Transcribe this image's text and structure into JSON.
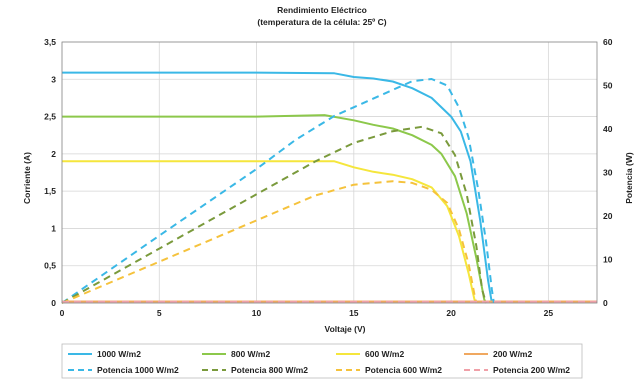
{
  "chart_data": {
    "type": "line",
    "title": "Rendimiento Eléctrico",
    "subtitle": "(temperatura de la célula: 25º C)",
    "xlabel": "Voltaje (V)",
    "ylabel": "Corriente (A)",
    "y2label": "Potencia (W)",
    "xlim": [
      0,
      27.5
    ],
    "ylim": [
      0,
      3.5
    ],
    "y2lim": [
      0,
      60
    ],
    "xticks": [
      0,
      5,
      10,
      15,
      20,
      25
    ],
    "xtick_labels": [
      "0",
      "5",
      "10",
      "15",
      "20",
      "25"
    ],
    "yticks": [
      0,
      0.5,
      1,
      1.5,
      2,
      2.5,
      3,
      3.5
    ],
    "ytick_labels": [
      "0",
      "0,5",
      "1",
      "1,5",
      "2",
      "2,5",
      "3",
      "3,5"
    ],
    "y2ticks": [
      0,
      10,
      20,
      30,
      40,
      50,
      60
    ],
    "y2tick_labels": [
      "0",
      "10",
      "20",
      "30",
      "40",
      "50",
      "60"
    ],
    "grid": true,
    "legend_position": "bottom",
    "series": [
      {
        "name": "1000 W/m2",
        "axis": "left",
        "style": "solid",
        "color": "#3ab8e6",
        "points": [
          [
            0,
            3.09
          ],
          [
            5,
            3.09
          ],
          [
            10,
            3.09
          ],
          [
            14,
            3.08
          ],
          [
            15,
            3.03
          ],
          [
            16,
            3.01
          ],
          [
            17,
            2.97
          ],
          [
            18,
            2.88
          ],
          [
            19,
            2.75
          ],
          [
            20,
            2.5
          ],
          [
            20.5,
            2.3
          ],
          [
            21,
            1.9
          ],
          [
            21.5,
            1.1
          ],
          [
            21.9,
            0.3
          ],
          [
            22.1,
            0
          ]
        ]
      },
      {
        "name": "800 W/m2",
        "axis": "left",
        "style": "solid",
        "color": "#8cc84b",
        "points": [
          [
            0,
            2.5
          ],
          [
            5,
            2.5
          ],
          [
            10,
            2.5
          ],
          [
            13.5,
            2.52
          ],
          [
            15,
            2.45
          ],
          [
            16,
            2.39
          ],
          [
            17,
            2.34
          ],
          [
            18,
            2.25
          ],
          [
            19,
            2.12
          ],
          [
            19.5,
            2.0
          ],
          [
            20.2,
            1.7
          ],
          [
            20.8,
            1.2
          ],
          [
            21.3,
            0.6
          ],
          [
            21.7,
            0.05
          ],
          [
            21.8,
            0
          ]
        ]
      },
      {
        "name": "600 W/m2",
        "axis": "left",
        "style": "solid",
        "color": "#f5e63c",
        "points": [
          [
            0,
            1.9
          ],
          [
            5,
            1.9
          ],
          [
            10,
            1.9
          ],
          [
            14,
            1.9
          ],
          [
            15,
            1.82
          ],
          [
            16,
            1.76
          ],
          [
            17,
            1.72
          ],
          [
            18,
            1.66
          ],
          [
            19,
            1.55
          ],
          [
            19.8,
            1.3
          ],
          [
            20.4,
            0.9
          ],
          [
            20.9,
            0.4
          ],
          [
            21.2,
            0.05
          ],
          [
            21.3,
            0
          ]
        ]
      },
      {
        "name": "200 W/m2",
        "axis": "left",
        "style": "solid",
        "color": "#f0a860",
        "points": [
          [
            0,
            0.02
          ],
          [
            27.5,
            0.02
          ]
        ]
      },
      {
        "name": "Potencia 1000 W/m2",
        "axis": "right",
        "style": "dashed",
        "color": "#3ab8e6",
        "points": [
          [
            0,
            0
          ],
          [
            5,
            15.5
          ],
          [
            10,
            30.8
          ],
          [
            12,
            37.5
          ],
          [
            14,
            43
          ],
          [
            16,
            47
          ],
          [
            18,
            51
          ],
          [
            19,
            51.5
          ],
          [
            19.8,
            50
          ],
          [
            20.4,
            45
          ],
          [
            20.9,
            38
          ],
          [
            21.4,
            26
          ],
          [
            21.8,
            14
          ],
          [
            22.1,
            3
          ],
          [
            22.2,
            0
          ]
        ]
      },
      {
        "name": "Potencia 800 W/m2",
        "axis": "right",
        "style": "dashed",
        "color": "#7a9a3c",
        "points": [
          [
            0,
            0
          ],
          [
            5,
            12.5
          ],
          [
            10,
            25
          ],
          [
            13,
            32.5
          ],
          [
            15,
            36.8
          ],
          [
            17,
            39.5
          ],
          [
            18.5,
            40.5
          ],
          [
            19.5,
            39
          ],
          [
            20.2,
            34
          ],
          [
            20.8,
            25
          ],
          [
            21.3,
            13
          ],
          [
            21.6,
            3
          ],
          [
            21.8,
            0
          ]
        ]
      },
      {
        "name": "Potencia 600 W/m2",
        "axis": "right",
        "style": "dashed",
        "color": "#f5c23c",
        "points": [
          [
            0,
            0
          ],
          [
            5,
            9.5
          ],
          [
            10,
            19
          ],
          [
            13,
            24.7
          ],
          [
            15,
            27.2
          ],
          [
            17,
            28
          ],
          [
            18,
            27.6
          ],
          [
            19,
            26
          ],
          [
            19.8,
            23
          ],
          [
            20.4,
            17
          ],
          [
            20.9,
            9
          ],
          [
            21.2,
            2
          ],
          [
            21.3,
            0
          ]
        ]
      },
      {
        "name": "Potencia 200 W/m2",
        "axis": "right",
        "style": "dashed",
        "color": "#f0a0a8",
        "points": [
          [
            0,
            0.3
          ],
          [
            27.5,
            0.3
          ]
        ]
      }
    ]
  }
}
